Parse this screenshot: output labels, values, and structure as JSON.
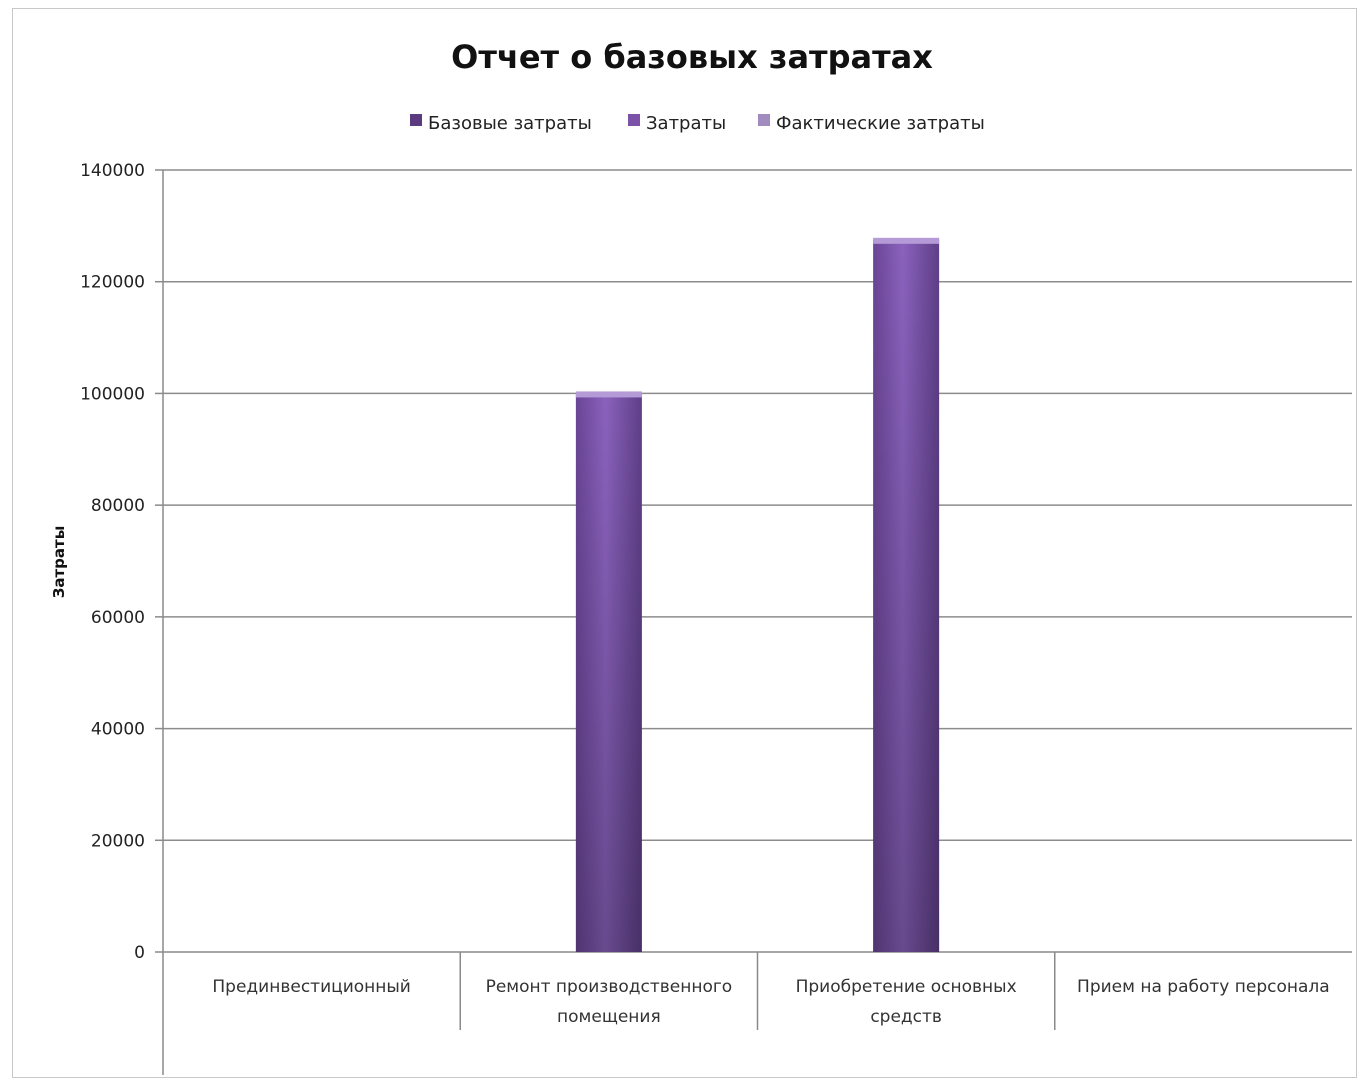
{
  "chart_data": {
    "type": "bar",
    "title": "Отчет о базовых затратах",
    "ylabel": "Затраты",
    "xlabel": "",
    "ylim": [
      0,
      140000
    ],
    "yticks": [
      0,
      20000,
      40000,
      60000,
      80000,
      100000,
      120000,
      140000
    ],
    "grid": true,
    "legend_position": "top",
    "categories": [
      [
        "Прединвестиционный"
      ],
      [
        "Ремонт производственного",
        "помещения"
      ],
      [
        "Приобретение основных",
        "средств"
      ],
      [
        "Прием на работу персонала"
      ]
    ],
    "series": [
      {
        "name": "Базовые затраты",
        "color": "#5b3b7f",
        "values": [
          0,
          0,
          0,
          0
        ]
      },
      {
        "name": "Затраты",
        "color": "#7b52a8",
        "values": [
          0,
          100000,
          127500,
          0
        ]
      },
      {
        "name": "Фактические затраты",
        "color": "#a08cbf",
        "values": [
          0,
          0,
          0,
          0
        ]
      }
    ]
  }
}
